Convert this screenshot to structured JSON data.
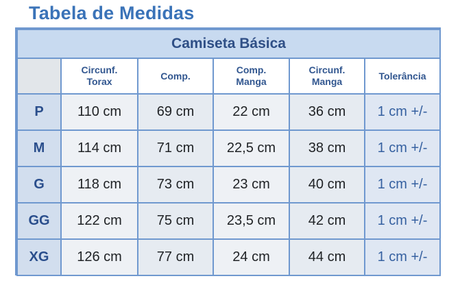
{
  "page": {
    "title": "Tabela de Medidas"
  },
  "table": {
    "caption": "Camiseta Básica",
    "columns": [
      {
        "line1": "Circunf.",
        "line2": "Torax"
      },
      {
        "line1": "Comp.",
        "line2": ""
      },
      {
        "line1": "Comp.",
        "line2": "Manga"
      },
      {
        "line1": "Circunf.",
        "line2": "Manga"
      },
      {
        "line1": "Tolerância",
        "line2": ""
      }
    ],
    "rows": [
      {
        "size": "P",
        "circ_torax": "110 cm",
        "comp": "69 cm",
        "comp_manga": "22 cm",
        "circ_manga": "36 cm",
        "tolerancia": "1 cm +/-"
      },
      {
        "size": "M",
        "circ_torax": "114 cm",
        "comp": "71 cm",
        "comp_manga": "22,5 cm",
        "circ_manga": "38 cm",
        "tolerancia": "1 cm +/-"
      },
      {
        "size": "G",
        "circ_torax": "118 cm",
        "comp": "73 cm",
        "comp_manga": "23 cm",
        "circ_manga": "40 cm",
        "tolerancia": "1 cm +/-"
      },
      {
        "size": "GG",
        "circ_torax": "122 cm",
        "comp": "75 cm",
        "comp_manga": "23,5 cm",
        "circ_manga": "42 cm",
        "tolerancia": "1 cm +/-"
      },
      {
        "size": "XG",
        "circ_torax": "126 cm",
        "comp": "77 cm",
        "comp_manga": "24 cm",
        "circ_manga": "44 cm",
        "tolerancia": "1 cm +/-"
      }
    ]
  },
  "colors": {
    "title": "#3a73b8",
    "border": "#6f98cf",
    "caption_bg": "#c8daf0",
    "size_text": "#2a4e8c"
  }
}
